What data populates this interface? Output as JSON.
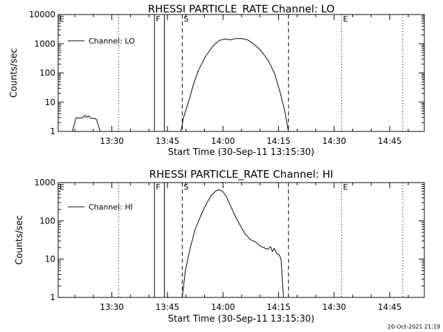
{
  "chart_data": [
    {
      "type": "line",
      "title": "RHESSI PARTICLE_RATE Channel: LO",
      "xlabel": "Start Time (30-Sep-11 13:15:30)",
      "ylabel": "Counts/sec",
      "y_scale": "log",
      "xlim": [
        "13:15:30",
        "14:54:20"
      ],
      "ylim": [
        1,
        10000
      ],
      "x_ticks": [
        "13:30",
        "13:45",
        "14:00",
        "14:15",
        "14:30",
        "14:45"
      ],
      "y_ticks": [
        "1",
        "10",
        "100",
        "1000",
        "10000"
      ],
      "legend": {
        "label": "Channel: LO",
        "position": "top-left"
      },
      "grid": false,
      "markers": [
        {
          "label": "E",
          "time": "13:15:30",
          "style": "dotted"
        },
        {
          "label": "",
          "time": "13:31:50",
          "style": "dotted"
        },
        {
          "label": "F",
          "time": "13:41:30",
          "style": "solid"
        },
        {
          "label": "",
          "time": "13:44:10",
          "style": "solid"
        },
        {
          "label": "S",
          "time": "13:49:00",
          "style": "dashed"
        },
        {
          "label": "",
          "time": "14:17:40",
          "style": "dashed"
        },
        {
          "label": "E",
          "time": "14:32:00",
          "style": "dotted"
        },
        {
          "label": "",
          "time": "14:48:30",
          "style": "dotted"
        }
      ],
      "series": [
        {
          "name": "Channel: LO",
          "segments": [
            {
              "x": [
                "13:19:20",
                "13:20:20",
                "13:22:00",
                "13:22:40",
                "13:23:10",
                "13:23:40",
                "13:24:20",
                "13:25:10",
                "13:25:50",
                "13:26:50"
              ],
              "y": [
                1,
                2.9,
                2.9,
                3.5,
                3.0,
                3.4,
                2.8,
                2.8,
                2.6,
                1
              ]
            },
            {
              "x": [
                "13:48:40",
                "13:49:20",
                "13:50:40",
                "13:52:00",
                "13:53:20",
                "13:55:10",
                "13:57:20",
                "13:59:00",
                "14:00:40",
                "14:02:00",
                "14:03:20",
                "14:05:00",
                "14:06:40",
                "14:08:10",
                "14:10:10",
                "14:12:20",
                "14:14:00",
                "14:15:30",
                "14:16:40",
                "14:17:40"
              ],
              "y": [
                1,
                3,
                10,
                40,
                120,
                350,
                850,
                1300,
                1450,
                1350,
                1500,
                1520,
                1350,
                1000,
                600,
                250,
                90,
                20,
                5,
                1
              ]
            }
          ]
        }
      ]
    },
    {
      "type": "line",
      "title": "RHESSI PARTICLE_RATE Channel: HI",
      "xlabel": "Start Time (30-Sep-11 13:15:30)",
      "ylabel": "Counts/sec",
      "y_scale": "log",
      "xlim": [
        "13:15:30",
        "14:54:20"
      ],
      "ylim": [
        1,
        1000
      ],
      "x_ticks": [
        "13:30",
        "13:45",
        "14:00",
        "14:15",
        "14:30",
        "14:45"
      ],
      "y_ticks": [
        "1",
        "10",
        "100",
        "1000"
      ],
      "legend": {
        "label": "Channel: HI",
        "position": "top-left"
      },
      "grid": false,
      "markers": [
        {
          "label": "E",
          "time": "13:15:30",
          "style": "dotted"
        },
        {
          "label": "",
          "time": "13:31:50",
          "style": "dotted"
        },
        {
          "label": "F",
          "time": "13:41:30",
          "style": "solid"
        },
        {
          "label": "",
          "time": "13:44:10",
          "style": "solid"
        },
        {
          "label": "S",
          "time": "13:49:00",
          "style": "dashed"
        },
        {
          "label": "",
          "time": "14:17:40",
          "style": "dashed"
        },
        {
          "label": "E",
          "time": "14:32:00",
          "style": "dotted"
        },
        {
          "label": "",
          "time": "14:48:30",
          "style": "dotted"
        }
      ],
      "series": [
        {
          "name": "Channel: HI",
          "segments": [
            {
              "x": [
                "13:49:00",
                "13:49:50",
                "13:51:10",
                "13:52:30",
                "13:54:10",
                "13:55:40",
                "13:57:00",
                "13:58:10",
                "13:59:00",
                "13:59:50",
                "14:00:50",
                "14:02:00",
                "14:03:20",
                "14:04:40",
                "14:06:00",
                "14:07:30",
                "14:08:50",
                "14:10:00",
                "14:11:00",
                "14:12:00",
                "14:12:50",
                "14:13:20",
                "14:13:50",
                "14:14:30",
                "14:15:10",
                "14:15:40",
                "14:16:00",
                "14:16:20"
              ],
              "y": [
                1,
                5,
                20,
                60,
                150,
                300,
                480,
                620,
                640,
                600,
                450,
                250,
                130,
                75,
                45,
                32,
                28,
                22,
                20,
                18,
                21,
                16,
                19,
                14,
                13,
                10,
                3,
                1
              ]
            }
          ]
        }
      ]
    }
  ],
  "footer": {
    "timestamp": "20-Oct-2021 21:19"
  }
}
